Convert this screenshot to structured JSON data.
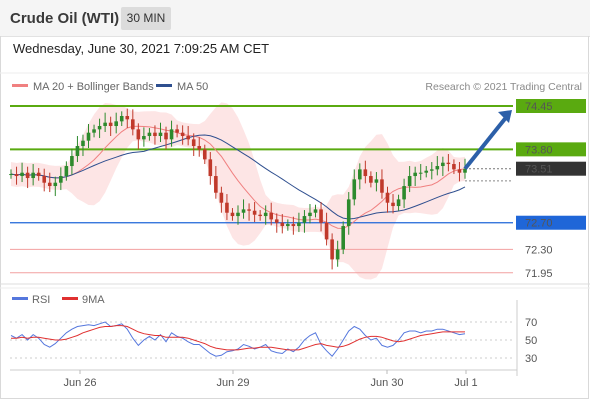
{
  "header": {
    "title": "Crude Oil (WTI)",
    "timeframe": "30 MIN"
  },
  "datetime": "Wednesday, June 30, 2021 7:09:25 AM CET",
  "copyright": "Research © 2021 Trading Central",
  "colors": {
    "resistance": "#5aaa10",
    "support": "#1f66d8",
    "ma20": "#f08080",
    "ma50": "#2f4f8f",
    "bollinger_fill": "#fde0e0",
    "candle_up": "#2d8a2d",
    "candle_down": "#c0392b",
    "rsi": "#5577dd",
    "rsi_ma": "#e03030",
    "arrow": "#2c5fa8"
  },
  "chart_data": [
    {
      "type": "candlestick",
      "legend": [
        {
          "label": "MA 20 + Bollinger Bands",
          "color": "#f08080"
        },
        {
          "label": "MA 50",
          "color": "#2f4f8f"
        }
      ],
      "x_labels": [
        "Jun 26",
        "Jun 29",
        "Jun 30",
        "Jul 1"
      ],
      "last_price": "73.51",
      "levels": [
        {
          "value": 74.45,
          "label": "74.45",
          "kind": "resistance"
        },
        {
          "value": 73.8,
          "label": "73.80",
          "kind": "resistance"
        },
        {
          "value": 72.7,
          "label": "72.70",
          "kind": "support"
        },
        {
          "value": 72.3,
          "label": "72.30",
          "kind": "target"
        },
        {
          "value": 71.95,
          "label": "71.95",
          "kind": "target"
        }
      ],
      "approx_close_series": [
        73.43,
        73.4,
        73.45,
        73.37,
        73.45,
        73.4,
        73.3,
        73.25,
        73.3,
        73.4,
        73.55,
        73.7,
        73.85,
        73.93,
        74.05,
        74.1,
        74.15,
        74.2,
        74.15,
        74.22,
        74.3,
        74.25,
        74.1,
        73.95,
        74.0,
        74.05,
        74.0,
        74.05,
        73.95,
        74.1,
        74.05,
        74.0,
        73.95,
        73.85,
        73.8,
        73.65,
        73.4,
        73.15,
        73.0,
        72.85,
        72.8,
        72.85,
        72.9,
        72.88,
        72.82,
        72.8,
        72.85,
        72.75,
        72.7,
        72.65,
        72.68,
        72.65,
        72.7,
        72.8,
        72.85,
        72.9,
        72.7,
        72.45,
        72.15,
        72.3,
        72.65,
        73.05,
        73.35,
        73.5,
        73.4,
        73.3,
        73.35,
        73.15,
        73.0,
        72.95,
        73.05,
        73.25,
        73.4,
        73.45,
        73.45,
        73.48,
        73.5,
        73.55,
        73.6,
        73.58,
        73.5,
        73.45,
        73.51
      ],
      "forecast_target": 74.45
    },
    {
      "type": "line",
      "legend": [
        {
          "label": "RSI",
          "color": "#5577dd"
        },
        {
          "label": "9MA",
          "color": "#e03030"
        }
      ],
      "y_ticks": [
        70,
        50,
        30
      ],
      "rsi": [
        55,
        52,
        56,
        50,
        56,
        52,
        45,
        42,
        46,
        52,
        58,
        62,
        65,
        66,
        67,
        66,
        68,
        70,
        65,
        66,
        68,
        62,
        52,
        44,
        50,
        54,
        50,
        56,
        48,
        58,
        54,
        52,
        48,
        45,
        45,
        40,
        35,
        32,
        33,
        37,
        38,
        40,
        45,
        43,
        40,
        42,
        45,
        38,
        36,
        35,
        40,
        37,
        42,
        50,
        55,
        58,
        45,
        38,
        32,
        40,
        50,
        60,
        65,
        62,
        55,
        50,
        52,
        44,
        42,
        44,
        50,
        58,
        60,
        60,
        58,
        60,
        60,
        62,
        62,
        60,
        58,
        56,
        57
      ],
      "rsi_ma": [
        52,
        52,
        53,
        52,
        53,
        53,
        52,
        51,
        50,
        50,
        51,
        53,
        55,
        58,
        60,
        62,
        64,
        65,
        65,
        66,
        66,
        65,
        62,
        59,
        57,
        56,
        55,
        55,
        53,
        53,
        53,
        53,
        52,
        50,
        48,
        46,
        43,
        41,
        40,
        39,
        39,
        39,
        40,
        41,
        41,
        42,
        42,
        42,
        41,
        40,
        39,
        39,
        39,
        41,
        43,
        45,
        46,
        44,
        43,
        42,
        43,
        45,
        48,
        51,
        53,
        54,
        54,
        53,
        51,
        49,
        48,
        49,
        51,
        53,
        55,
        56,
        57,
        58,
        59,
        59,
        59,
        59,
        59
      ]
    }
  ]
}
